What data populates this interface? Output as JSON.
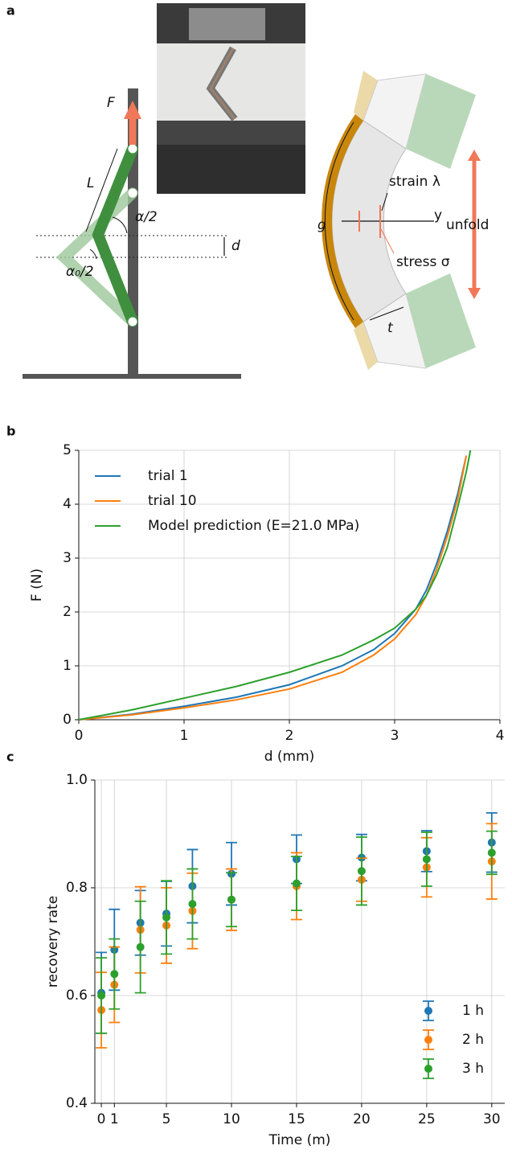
{
  "panel_labels": [
    "a",
    "b",
    "c"
  ],
  "diagram": {
    "labels": {
      "force": "F",
      "length": "L",
      "angle": "α/2",
      "displacement": "d",
      "initial_angle": "α₀/2",
      "gauge": "g",
      "strain": "strain λ",
      "axis": "y",
      "unfold": "unfold",
      "stress": "stress σ",
      "thickness": "t"
    }
  },
  "chart_data": [
    {
      "type": "line",
      "x_label": "d (mm)",
      "y_label": "F (N)",
      "x": [
        0,
        0.5,
        1,
        1.5,
        2,
        2.5,
        2.8,
        3,
        3.2,
        3.3,
        3.4,
        3.5,
        3.6,
        3.68,
        3.72
      ],
      "series": [
        {
          "name": "trial 1",
          "color": "#1f77b4",
          "values": [
            0,
            0.1,
            0.25,
            0.42,
            0.65,
            1.0,
            1.3,
            1.6,
            2.05,
            2.4,
            2.9,
            3.5,
            4.2,
            4.9,
            null
          ]
        },
        {
          "name": "trial 10",
          "color": "#ff7f0e",
          "values": [
            0,
            0.09,
            0.22,
            0.37,
            0.57,
            0.88,
            1.2,
            1.5,
            1.95,
            2.3,
            2.8,
            3.4,
            4.1,
            4.9,
            null
          ]
        },
        {
          "name": "Model prediction (E=21.0 MPa)",
          "color": "#2ca02c",
          "values": [
            0,
            0.18,
            0.4,
            0.62,
            0.88,
            1.2,
            1.48,
            1.7,
            2.05,
            2.3,
            2.7,
            3.2,
            3.95,
            4.6,
            5.0
          ]
        }
      ],
      "xlim": [
        0,
        4
      ],
      "ylim": [
        0,
        5
      ],
      "xticks": [
        0,
        1,
        2,
        3,
        4
      ],
      "yticks": [
        0,
        1,
        2,
        3,
        4,
        5
      ],
      "grid": true,
      "legend": "upper-left"
    },
    {
      "type": "scatter",
      "x_label": "Time (m)",
      "y_label": "recovery rate",
      "x": [
        0,
        1,
        3,
        5,
        7,
        10,
        15,
        20,
        25,
        30
      ],
      "series": [
        {
          "name": "1 h",
          "color": "#1f77b4",
          "values": [
            0.605,
            0.685,
            0.735,
            0.752,
            0.803,
            0.826,
            0.853,
            0.856,
            0.868,
            0.884
          ],
          "errors": [
            0.075,
            0.075,
            0.06,
            0.06,
            0.068,
            0.058,
            0.045,
            0.043,
            0.038,
            0.055
          ]
        },
        {
          "name": "2 h",
          "color": "#ff7f0e",
          "values": [
            0.573,
            0.62,
            0.722,
            0.73,
            0.757,
            0.778,
            0.803,
            0.815,
            0.838,
            0.849
          ],
          "errors": [
            0.07,
            0.07,
            0.08,
            0.07,
            0.07,
            0.057,
            0.062,
            0.04,
            0.055,
            0.07
          ]
        },
        {
          "name": "3 h",
          "color": "#2ca02c",
          "values": [
            0.6,
            0.64,
            0.69,
            0.745,
            0.77,
            0.778,
            0.808,
            0.831,
            0.853,
            0.865
          ],
          "errors": [
            0.07,
            0.065,
            0.085,
            0.068,
            0.065,
            0.05,
            0.05,
            0.063,
            0.05,
            0.04
          ]
        }
      ],
      "xlim": [
        -0.5,
        31
      ],
      "ylim": [
        0.4,
        1
      ],
      "xticks": [
        0,
        1,
        5,
        10,
        15,
        20,
        25,
        30
      ],
      "yticks": [
        0.4,
        0.6,
        0.8,
        {
          "value": 1,
          "label": "1.0"
        }
      ],
      "grid": true,
      "legend": "lower-right"
    }
  ]
}
